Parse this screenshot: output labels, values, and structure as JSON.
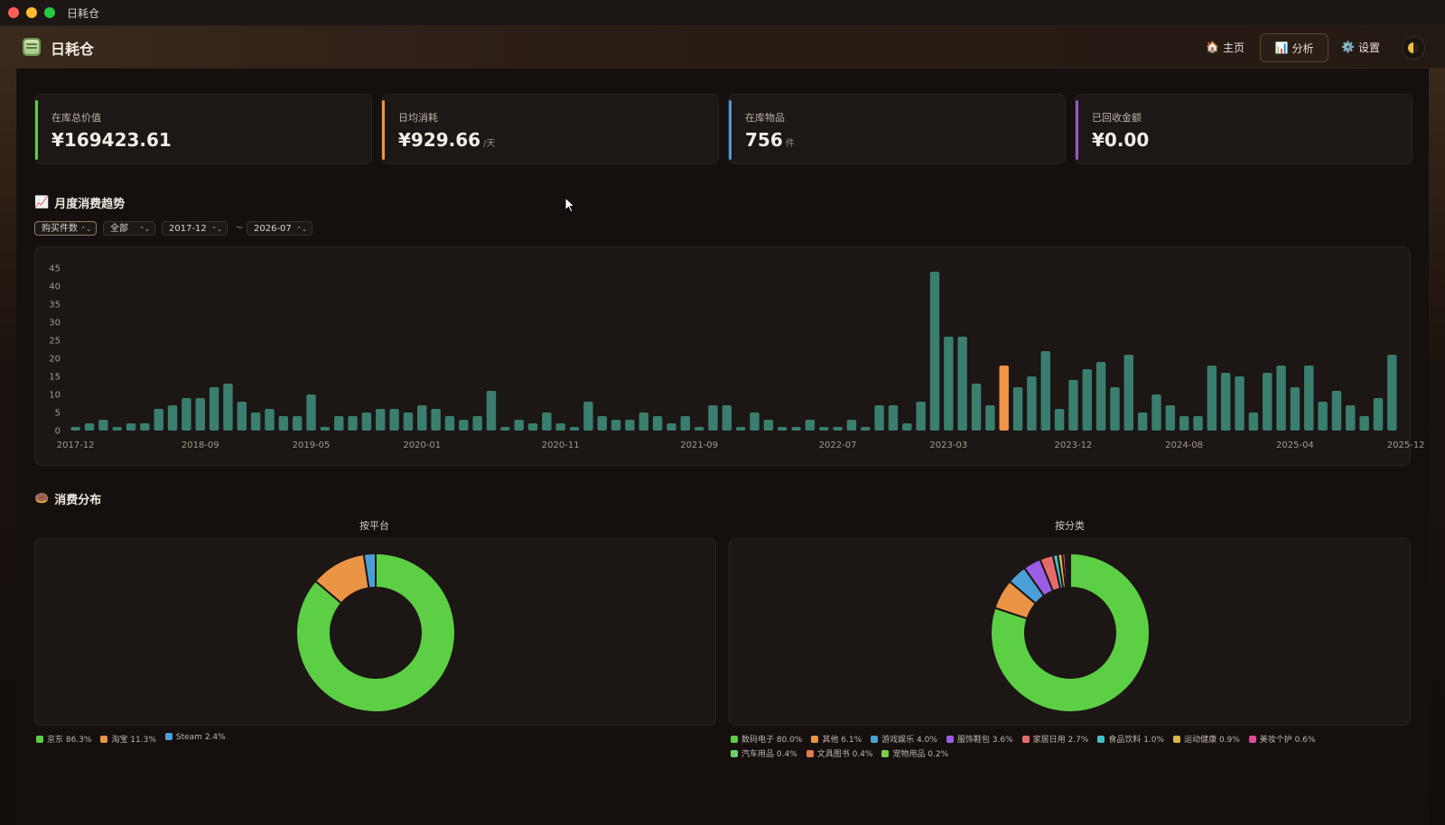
{
  "window": {
    "title": "日耗仓"
  },
  "app": {
    "title": "日耗仓",
    "nav": [
      {
        "icon": "house-icon",
        "label": "主页"
      },
      {
        "icon": "bar-chart-icon",
        "label": "分析"
      },
      {
        "icon": "gear-icon",
        "label": "设置"
      }
    ]
  },
  "stats": [
    {
      "label": "在库总价值",
      "value": "¥169423.61",
      "unit": "",
      "color": "#5ccf45"
    },
    {
      "label": "日均消耗",
      "value": "¥929.66",
      "unit": "/天",
      "color": "#ec9445"
    },
    {
      "label": "在库物品",
      "value": "756",
      "unit": "件",
      "color": "#4a9fd8"
    },
    {
      "label": "已回收金额",
      "value": "¥0.00",
      "unit": "",
      "color": "#8c5cc8"
    }
  ],
  "trend": {
    "title": "月度消费趋势",
    "controls": {
      "metric": "购买件数",
      "category": "全部",
      "from": "2017-12",
      "to": "2026-07",
      "separator": "~"
    }
  },
  "distribution": {
    "title": "消费分布",
    "platform_title": "按平台",
    "category_title": "按分类"
  },
  "chart_data": [
    {
      "type": "bar",
      "ylim": [
        0,
        45
      ],
      "yticks": [
        0,
        5,
        10,
        15,
        20,
        25,
        30,
        35,
        40,
        45
      ],
      "xtick_labels": [
        "2017-12",
        "2018-09",
        "2019-05",
        "2020-01",
        "2020-11",
        "2021-09",
        "2022-07",
        "2023-03",
        "2023-12",
        "2024-08",
        "2025-04",
        "2025-12"
      ],
      "start": "2017-12",
      "values": [
        1,
        2,
        3,
        1,
        2,
        2,
        6,
        7,
        9,
        9,
        12,
        13,
        8,
        5,
        6,
        4,
        4,
        10,
        1,
        4,
        4,
        5,
        6,
        6,
        5,
        7,
        6,
        4,
        3,
        4,
        11,
        1,
        3,
        2,
        5,
        2,
        1,
        8,
        4,
        3,
        3,
        5,
        4,
        2,
        4,
        1,
        7,
        7,
        1,
        5,
        3,
        1,
        1,
        3,
        1,
        1,
        3,
        1,
        7,
        7,
        2,
        8,
        44,
        26,
        26,
        13,
        7,
        18,
        12,
        15,
        22,
        6,
        14,
        17,
        19,
        12,
        21,
        5,
        10,
        7,
        4,
        4,
        18,
        16,
        15,
        5,
        16,
        18,
        12,
        18,
        8,
        11,
        7,
        4,
        9,
        21
      ],
      "highlight": "2023-07",
      "bar_color": "#3d8a78",
      "highlight_color": "#ef9448"
    },
    {
      "type": "pie",
      "title": "按平台",
      "slices": [
        {
          "label": "京东",
          "pct": 86.3,
          "color": "#5ccf45"
        },
        {
          "label": "淘宝",
          "pct": 11.3,
          "color": "#ec9445"
        },
        {
          "label": "Steam",
          "pct": 2.4,
          "color": "#4a9fd8"
        }
      ]
    },
    {
      "type": "pie",
      "title": "按分类",
      "slices": [
        {
          "label": "数码电子",
          "pct": 80.0,
          "color": "#5ccf45"
        },
        {
          "label": "其他",
          "pct": 6.1,
          "color": "#ec9445"
        },
        {
          "label": "游戏娱乐",
          "pct": 4.0,
          "color": "#4a9fd8"
        },
        {
          "label": "服饰鞋包",
          "pct": 3.6,
          "color": "#9b5de5"
        },
        {
          "label": "家居日用",
          "pct": 2.7,
          "color": "#e56b6b"
        },
        {
          "label": "食品饮料",
          "pct": 1.0,
          "color": "#3fc1c9"
        },
        {
          "label": "运动健康",
          "pct": 0.9,
          "color": "#d8b84a"
        },
        {
          "label": "美妆个护",
          "pct": 0.6,
          "color": "#e04a9a"
        },
        {
          "label": "汽车用品",
          "pct": 0.4,
          "color": "#6ad06a"
        },
        {
          "label": "文具图书",
          "pct": 0.4,
          "color": "#e07a50"
        },
        {
          "label": "宠物用品",
          "pct": 0.2,
          "color": "#7ccd4a"
        }
      ]
    }
  ]
}
